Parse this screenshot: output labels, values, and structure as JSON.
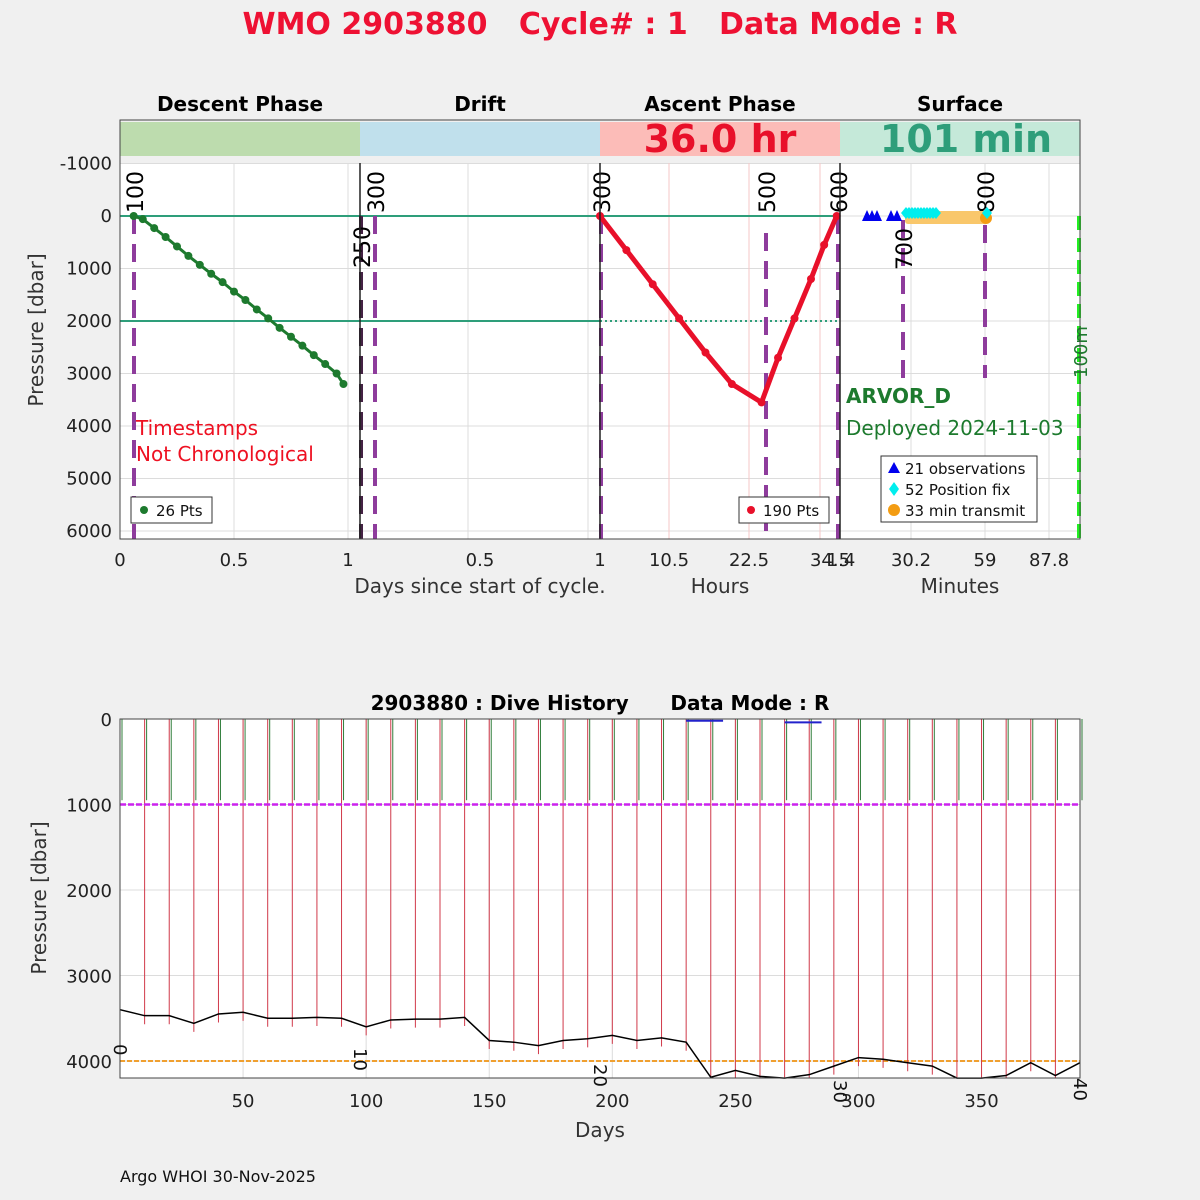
{
  "figure_title": "WMO 2903880   Cycle# : 1   Data Mode : R",
  "phases": {
    "descent": "Descent Phase",
    "drift": "Drift",
    "ascent": "Ascent Phase",
    "surface": "Surface",
    "ascent_duration": "36.0 hr",
    "surface_duration": "101 min"
  },
  "colors": {
    "title": "#ee1133",
    "descent_band": "#bddcae",
    "drift_band": "#c0e0ec",
    "ascent_band": "#fcbcb8",
    "surface_band": "#c5e9d9",
    "descent_data": "#1d7a2e",
    "ascent_data": "#e8102a",
    "ref_line": "#2e9e7a",
    "marker_line": "#8e3c9c",
    "obs": "#0000ee",
    "position_fix": "#00eeee",
    "transmit": "#f9c76b",
    "transmit_marker": "#f39c12",
    "float_text": "#1d7a2e",
    "warn_text": "#ee1122",
    "green_dash": "#22ee22",
    "history_drift": "#cc22ee",
    "history_park": "#f0a030"
  },
  "top_panel": {
    "ylabel": "Pressure [dbar]",
    "yticks": [
      "-1000",
      "0",
      "1000",
      "2000",
      "3000",
      "4000",
      "5000",
      "6000"
    ],
    "xlabel_days": "Days since start of cycle.",
    "xlabel_hours": "Hours",
    "xlabel_minutes": "Minutes",
    "descent_ticks": [
      "0",
      "0.5",
      "1"
    ],
    "drift_ticks": [
      "0.5",
      "1"
    ],
    "hours_ticks": [
      "10.5",
      "22.5",
      "34.5"
    ],
    "minutes_ticks": [
      "1.4",
      "30.2",
      "59",
      "87.8"
    ],
    "marker_labels": [
      "100",
      "250",
      "300",
      "300",
      "500",
      "600",
      "700",
      "800",
      "100m"
    ],
    "warning_line1": "Timestamps",
    "warning_line2": "Not Chronological",
    "descent_pts": "26 Pts",
    "ascent_pts": "190 Pts",
    "float_type": "ARVOR_D",
    "deployed": "Deployed 2024-11-03",
    "legend": [
      "21 observations",
      "52 Position fix",
      "33 min transmit"
    ]
  },
  "bottom_panel": {
    "title": "2903880 : Dive History      Data Mode : R",
    "ylabel": "Pressure [dbar]",
    "xlabel": "Days",
    "yticks": [
      "0",
      "1000",
      "2000",
      "3000",
      "4000"
    ],
    "xticks": [
      "50",
      "100",
      "150",
      "200",
      "250",
      "300",
      "350"
    ],
    "cycle_labels": [
      "0",
      "10",
      "20",
      "30",
      "40"
    ]
  },
  "footer": "Argo WHOI 30-Nov-2025",
  "chart_data": [
    {
      "type": "scatter",
      "name": "Descent Phase",
      "xlabel": "Days since start of cycle.",
      "ylabel": "Pressure [dbar]",
      "ylim": [
        -1000,
        6000
      ],
      "grid": true,
      "x": [
        0.06,
        0.1,
        0.15,
        0.2,
        0.25,
        0.3,
        0.35,
        0.4,
        0.45,
        0.5,
        0.55,
        0.6,
        0.65,
        0.7,
        0.75,
        0.8,
        0.85,
        0.9,
        0.95,
        0.98
      ],
      "y": [
        0,
        60,
        230,
        400,
        580,
        760,
        930,
        1100,
        1260,
        1440,
        1600,
        1780,
        1950,
        2130,
        2300,
        2470,
        2650,
        2820,
        3000,
        3200
      ]
    },
    {
      "type": "scatter",
      "name": "Ascent Phase",
      "xlabel": "Hours",
      "ylabel": "Pressure [dbar]",
      "ylim": [
        -1000,
        6000
      ],
      "x": [
        0,
        4,
        8,
        12,
        16,
        20,
        24.5,
        27,
        29.5,
        32,
        34,
        35.9
      ],
      "y": [
        0,
        650,
        1300,
        1950,
        2600,
        3200,
        3550,
        2700,
        1950,
        1200,
        550,
        0
      ]
    },
    {
      "type": "line",
      "name": "Dive History",
      "xlabel": "Days",
      "ylabel": "Pressure [dbar]",
      "ylim": [
        0,
        4200
      ],
      "xlim": [
        0,
        392
      ],
      "cycle_x": [
        0,
        10,
        20,
        30,
        40,
        50,
        60,
        70,
        80,
        90,
        100,
        110,
        120,
        130,
        140,
        150,
        160,
        170,
        180,
        190,
        200,
        210,
        220,
        230,
        240,
        250,
        260,
        270,
        280,
        290,
        300,
        310,
        320,
        330,
        340,
        350,
        360,
        370,
        380,
        390
      ],
      "bottom_depth": [
        3400,
        3470,
        3470,
        3560,
        3450,
        3430,
        3500,
        3500,
        3490,
        3500,
        3600,
        3520,
        3510,
        3510,
        3490,
        3760,
        3780,
        3820,
        3760,
        3740,
        3700,
        3760,
        3730,
        3780,
        4190,
        4110,
        4180,
        4200,
        4160,
        4060,
        3960,
        3980,
        4020,
        4060,
        4200,
        4200,
        4170,
        4020,
        4170,
        4020
      ],
      "drift_pressure": 1000,
      "park_pressure": 4000
    }
  ]
}
